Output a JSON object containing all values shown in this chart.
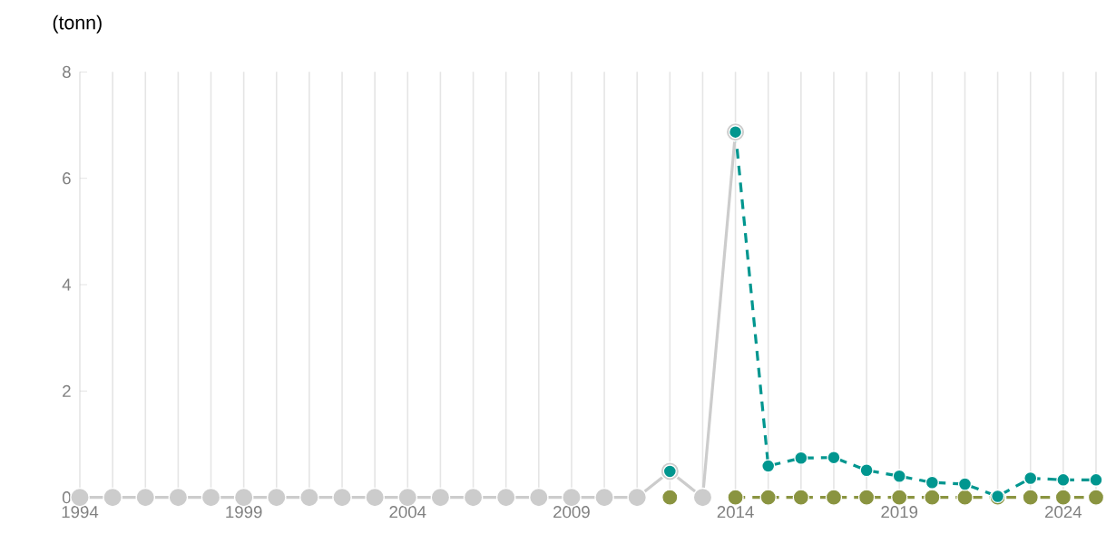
{
  "chart_data": {
    "type": "line",
    "ylabel": "(tonn)",
    "x": [
      1994,
      1995,
      1996,
      1997,
      1998,
      1999,
      2000,
      2001,
      2002,
      2003,
      2004,
      2005,
      2006,
      2007,
      2008,
      2009,
      2010,
      2011,
      2012,
      2013,
      2014,
      2015,
      2016,
      2017,
      2018,
      2019,
      2020,
      2021,
      2022,
      2023,
      2024,
      2025
    ],
    "series": [
      {
        "color": "#cccccc",
        "line_style": "solid",
        "values": [
          0,
          0,
          0,
          0,
          0,
          0,
          0,
          0,
          0,
          0,
          0,
          0,
          0,
          0,
          0,
          0,
          0,
          0,
          0.49,
          0,
          6.87,
          null,
          null,
          null,
          null,
          null,
          null,
          null,
          null,
          null,
          null,
          null
        ]
      },
      {
        "color": "#8a9440",
        "line_style": "dashed",
        "values": [
          null,
          null,
          null,
          null,
          null,
          null,
          null,
          null,
          null,
          null,
          null,
          null,
          null,
          null,
          null,
          null,
          null,
          null,
          0,
          null,
          0,
          0,
          0,
          0,
          0,
          0,
          0,
          0,
          0,
          0,
          0,
          0
        ]
      },
      {
        "color": "#00968f",
        "line_style": "dashed",
        "values": [
          null,
          null,
          null,
          null,
          null,
          null,
          null,
          null,
          null,
          null,
          null,
          null,
          null,
          null,
          null,
          null,
          null,
          null,
          0.49,
          null,
          6.87,
          0.59,
          0.74,
          0.75,
          0.51,
          0.4,
          0.28,
          0.25,
          0.02,
          0.36,
          0.33,
          0.33
        ]
      }
    ],
    "marker": "circle",
    "grid": "x",
    "xlim": [
      1994,
      2025
    ],
    "ylim": [
      0,
      8
    ],
    "xticks": [
      1994,
      {
        "value": 1995,
        "label": null
      },
      {
        "value": 1996,
        "label": null
      },
      {
        "value": 1997,
        "label": null
      },
      {
        "value": 1998,
        "label": null
      },
      1999,
      {
        "value": 2000,
        "label": null
      },
      {
        "value": 2001,
        "label": null
      },
      {
        "value": 2002,
        "label": null
      },
      {
        "value": 2003,
        "label": null
      },
      2004,
      {
        "value": 2005,
        "label": null
      },
      {
        "value": 2006,
        "label": null
      },
      {
        "value": 2007,
        "label": null
      },
      {
        "value": 2008,
        "label": null
      },
      2009,
      {
        "value": 2010,
        "label": null
      },
      {
        "value": 2011,
        "label": null
      },
      {
        "value": 2012,
        "label": null
      },
      {
        "value": 2013,
        "label": null
      },
      2014,
      {
        "value": 2015,
        "label": null
      },
      {
        "value": 2016,
        "label": null
      },
      {
        "value": 2017,
        "label": null
      },
      {
        "value": 2018,
        "label": null
      },
      2019,
      {
        "value": 2020,
        "label": null
      },
      {
        "value": 2021,
        "label": null
      },
      {
        "value": 2022,
        "label": null
      },
      {
        "value": 2023,
        "label": null
      },
      2024,
      {
        "value": 2025,
        "label": null
      }
    ],
    "yticks": [
      0,
      2,
      4,
      6,
      8
    ]
  }
}
